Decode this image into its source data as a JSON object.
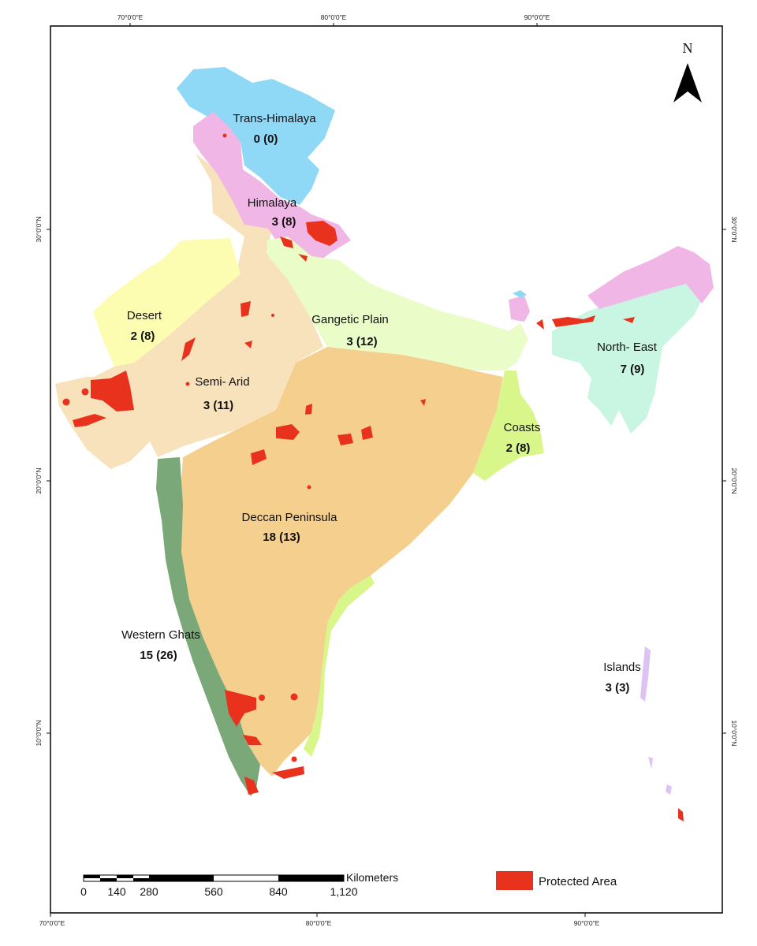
{
  "map": {
    "colors": {
      "trans_himalaya": "#8fd8f6",
      "himalaya": "#f0b6e6",
      "desert": "#fdfdb2",
      "semi_arid": "#f8e2bc",
      "gangetic_plain": "#eafcc8",
      "deccan": "#f5cf8e",
      "western_ghats": "#7ba878",
      "north_east": "#c8f6e2",
      "coasts": "#d8f68a",
      "islands": "#ddc2f4",
      "protected_area": "#e8321e"
    },
    "regions": [
      {
        "key": "trans_himalaya",
        "name": "Trans-Himalaya",
        "count": "0 (0)"
      },
      {
        "key": "himalaya",
        "name": "Himalaya",
        "count": "3 (8)"
      },
      {
        "key": "desert",
        "name": "Desert",
        "count": "2 (8)"
      },
      {
        "key": "semi_arid",
        "name": "Semi- Arid",
        "count": "3 (11)"
      },
      {
        "key": "gangetic_plain",
        "name": "Gangetic Plain",
        "count": "3 (12)"
      },
      {
        "key": "north_east",
        "name": "North- East",
        "count": "7 (9)"
      },
      {
        "key": "coasts",
        "name": "Coasts",
        "count": "2 (8)"
      },
      {
        "key": "deccan",
        "name": "Deccan Peninsula",
        "count": "18 (13)"
      },
      {
        "key": "western_ghats",
        "name": "Western Ghats",
        "count": "15 (26)"
      },
      {
        "key": "islands",
        "name": "Islands",
        "count": "3 (3)"
      }
    ],
    "graticule": {
      "top": [
        "70°0'0\"E",
        "80°0'0\"E",
        "90°0'0\"E"
      ],
      "bottom": [
        "70°0'0\"E",
        "80°0'0\"E",
        "90°0'0\"E"
      ],
      "left": [
        "30°0'0\"N",
        "20°0'0\"N",
        "10°0'0\"N"
      ],
      "right": [
        "30°0'0\"N",
        "20°0'0\"N",
        "10°0'0\"N"
      ]
    },
    "north_arrow": {
      "label": "N",
      "icon": "north-arrow-icon"
    },
    "scale_bar": {
      "unit": "Kilometers",
      "ticks": [
        "0",
        "140",
        "280",
        "560",
        "840",
        "1,120"
      ]
    },
    "legend": {
      "label": "Protected Area"
    }
  }
}
